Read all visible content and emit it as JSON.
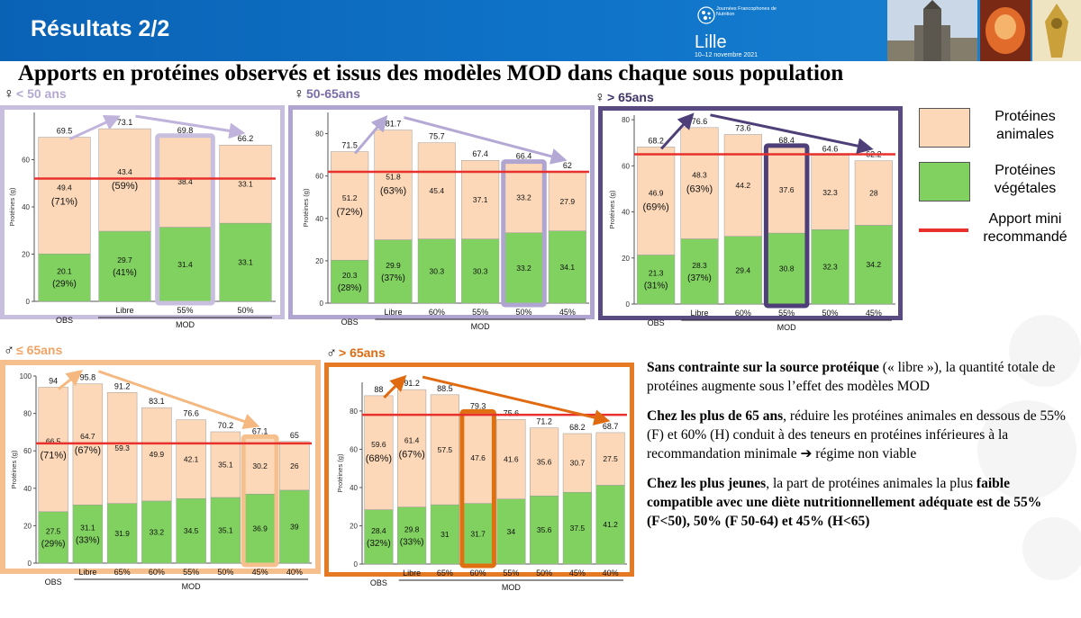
{
  "header": {
    "title": "Résultats 2/2"
  },
  "logo": {
    "org": "Journées Francophones de Nutrition",
    "city": "Lille",
    "dates": "10–12 novembre 2021"
  },
  "slide_title": "Apports en protéines observés et issus des modèles MOD dans chaque sous population",
  "legend": {
    "animal": "Protéines animales",
    "vegetal": "Protéines végétales",
    "recommended": "Apport mini recommandé"
  },
  "colors": {
    "animal": "#fcd8b8",
    "vegetal": "#80d160",
    "recommended_line": "#e8302c",
    "female_young": "#c8bedd",
    "female_mid": "#b0a4d0",
    "female_old": "#5a4a82",
    "male_young": "#f6c08e",
    "male_old": "#e67a22"
  },
  "panels": [
    {
      "label": "< 50 ans",
      "symbol": "♀"
    },
    {
      "label": "50-65ans",
      "symbol": "♀"
    },
    {
      "label": "> 65ans",
      "symbol": "♀"
    },
    {
      "label": "≤ 65ans",
      "symbol": "♂"
    },
    {
      "label": "> 65ans",
      "symbol": "♂"
    }
  ],
  "text": {
    "p1_bold": "Sans contrainte sur la source protéique",
    "p1_rest": " (« libre »), la quantité totale de protéines augmente sous l’effet des modèles MOD",
    "p2_bold": "Chez les plus de 65 ans",
    "p2_rest": ", réduire les protéines animales en dessous de 55% (F) et 60% (H) conduit à des teneurs en protéines inférieures à la recommandation minimale ➔ régime non viable",
    "p3_bold": "Chez les plus jeunes",
    "p3_rest": ", la part de protéines animales la plus ",
    "p3_bold2": "faible compatible avec une diète nutritionnellement adéquate est de 55% (F<50), 50% (F 50-64) et 45% (H<65)"
  },
  "chart_data": [
    {
      "type": "bar",
      "ylabel": "Protéines (g)",
      "ylim": [
        0,
        80
      ],
      "yticks": [
        0,
        20,
        40,
        60
      ],
      "recommended": 52,
      "categories": [
        "OBS",
        "Libre",
        "55%",
        "50%"
      ],
      "group_label": "MOD",
      "series": [
        {
          "name": "Protéines végétales",
          "values": [
            20.1,
            29.7,
            31.4,
            33.1
          ],
          "pct": [
            "(29%)",
            "(41%)",
            "",
            ""
          ]
        },
        {
          "name": "Protéines animales",
          "values": [
            49.4,
            43.4,
            38.4,
            33.1
          ],
          "pct": [
            "(71%)",
            "(59%)",
            "",
            ""
          ]
        }
      ],
      "totals": [
        69.5,
        73.1,
        69.8,
        66.2
      ],
      "highlight": 2
    },
    {
      "type": "bar",
      "ylabel": "Protéines (g)",
      "ylim": [
        0,
        90
      ],
      "yticks": [
        0,
        20,
        40,
        60,
        80
      ],
      "recommended": 62,
      "categories": [
        "OBS",
        "Libre",
        "60%",
        "55%",
        "50%",
        "45%"
      ],
      "group_label": "MOD",
      "series": [
        {
          "name": "Protéines végétales",
          "values": [
            20.3,
            29.9,
            30.3,
            30.3,
            33.2,
            34.1
          ],
          "pct": [
            "(28%)",
            "(37%)",
            "",
            "",
            "",
            ""
          ]
        },
        {
          "name": "Protéines animales",
          "values": [
            51.2,
            51.8,
            45.4,
            37.1,
            33.2,
            27.9
          ],
          "pct": [
            "(72%)",
            "(63%)",
            "",
            "",
            "",
            ""
          ]
        }
      ],
      "totals": [
        71.5,
        81.7,
        75.7,
        67.4,
        66.4,
        62
      ],
      "highlight": 4
    },
    {
      "type": "bar",
      "ylabel": "Protéines (g)",
      "ylim": [
        0,
        82
      ],
      "yticks": [
        0,
        20,
        40,
        60,
        80
      ],
      "recommended": 65,
      "categories": [
        "OBS",
        "Libre",
        "60%",
        "55%",
        "50%",
        "45%"
      ],
      "group_label": "MOD",
      "series": [
        {
          "name": "Protéines végétales",
          "values": [
            21.3,
            28.3,
            29.4,
            30.8,
            32.3,
            34.2
          ],
          "pct": [
            "(31%)",
            "(37%)",
            "",
            "",
            "",
            ""
          ]
        },
        {
          "name": "Protéines animales",
          "values": [
            46.9,
            48.3,
            44.2,
            37.6,
            32.3,
            28
          ],
          "pct": [
            "(69%)",
            "(63%)",
            "",
            "",
            "",
            ""
          ]
        }
      ],
      "totals": [
        68.2,
        76.6,
        73.6,
        68.4,
        64.6,
        62.2
      ],
      "highlight": 3
    },
    {
      "type": "bar",
      "ylabel": "Protéines (g)",
      "ylim": [
        0,
        100
      ],
      "yticks": [
        0,
        20,
        40,
        60,
        80,
        100
      ],
      "recommended": 64,
      "categories": [
        "OBS",
        "Libre",
        "65%",
        "60%",
        "55%",
        "50%",
        "45%",
        "40%"
      ],
      "group_label": "MOD",
      "series": [
        {
          "name": "Protéines végétales",
          "values": [
            27.5,
            31.1,
            31.9,
            33.2,
            34.5,
            35.1,
            36.9,
            39
          ],
          "pct": [
            "(29%)",
            "(33%)",
            "",
            "",
            "",
            "",
            "",
            ""
          ]
        },
        {
          "name": "Protéines animales",
          "values": [
            66.5,
            64.7,
            59.3,
            49.9,
            42.1,
            35.1,
            30.2,
            26
          ],
          "pct": [
            "(71%)",
            "(67%)",
            "",
            "",
            "",
            "",
            "",
            ""
          ]
        }
      ],
      "totals": [
        94,
        95.8,
        91.2,
        83.1,
        76.6,
        70.2,
        67.1,
        65
      ],
      "highlight": 6
    },
    {
      "type": "bar",
      "ylabel": "Protéines (g)",
      "ylim": [
        0,
        95
      ],
      "yticks": [
        0,
        20,
        40,
        60,
        80
      ],
      "recommended": 78,
      "categories": [
        "OBS",
        "Libre",
        "65%",
        "60%",
        "55%",
        "50%",
        "45%",
        "40%"
      ],
      "group_label": "MOD",
      "series": [
        {
          "name": "Protéines végétales",
          "values": [
            28.4,
            29.8,
            31,
            31.7,
            34,
            35.6,
            37.5,
            41.2
          ],
          "pct": [
            "(32%)",
            "(33%)",
            "",
            "",
            "",
            "",
            "",
            ""
          ]
        },
        {
          "name": "Protéines animales",
          "values": [
            59.6,
            61.4,
            57.5,
            47.6,
            41.6,
            35.6,
            30.7,
            27.5
          ],
          "pct": [
            "(68%)",
            "(67%)",
            "",
            "",
            "",
            "",
            "",
            ""
          ]
        }
      ],
      "totals": [
        88,
        91.2,
        88.5,
        79.3,
        75.6,
        71.2,
        68.2,
        68.7
      ],
      "highlight": 3
    }
  ]
}
